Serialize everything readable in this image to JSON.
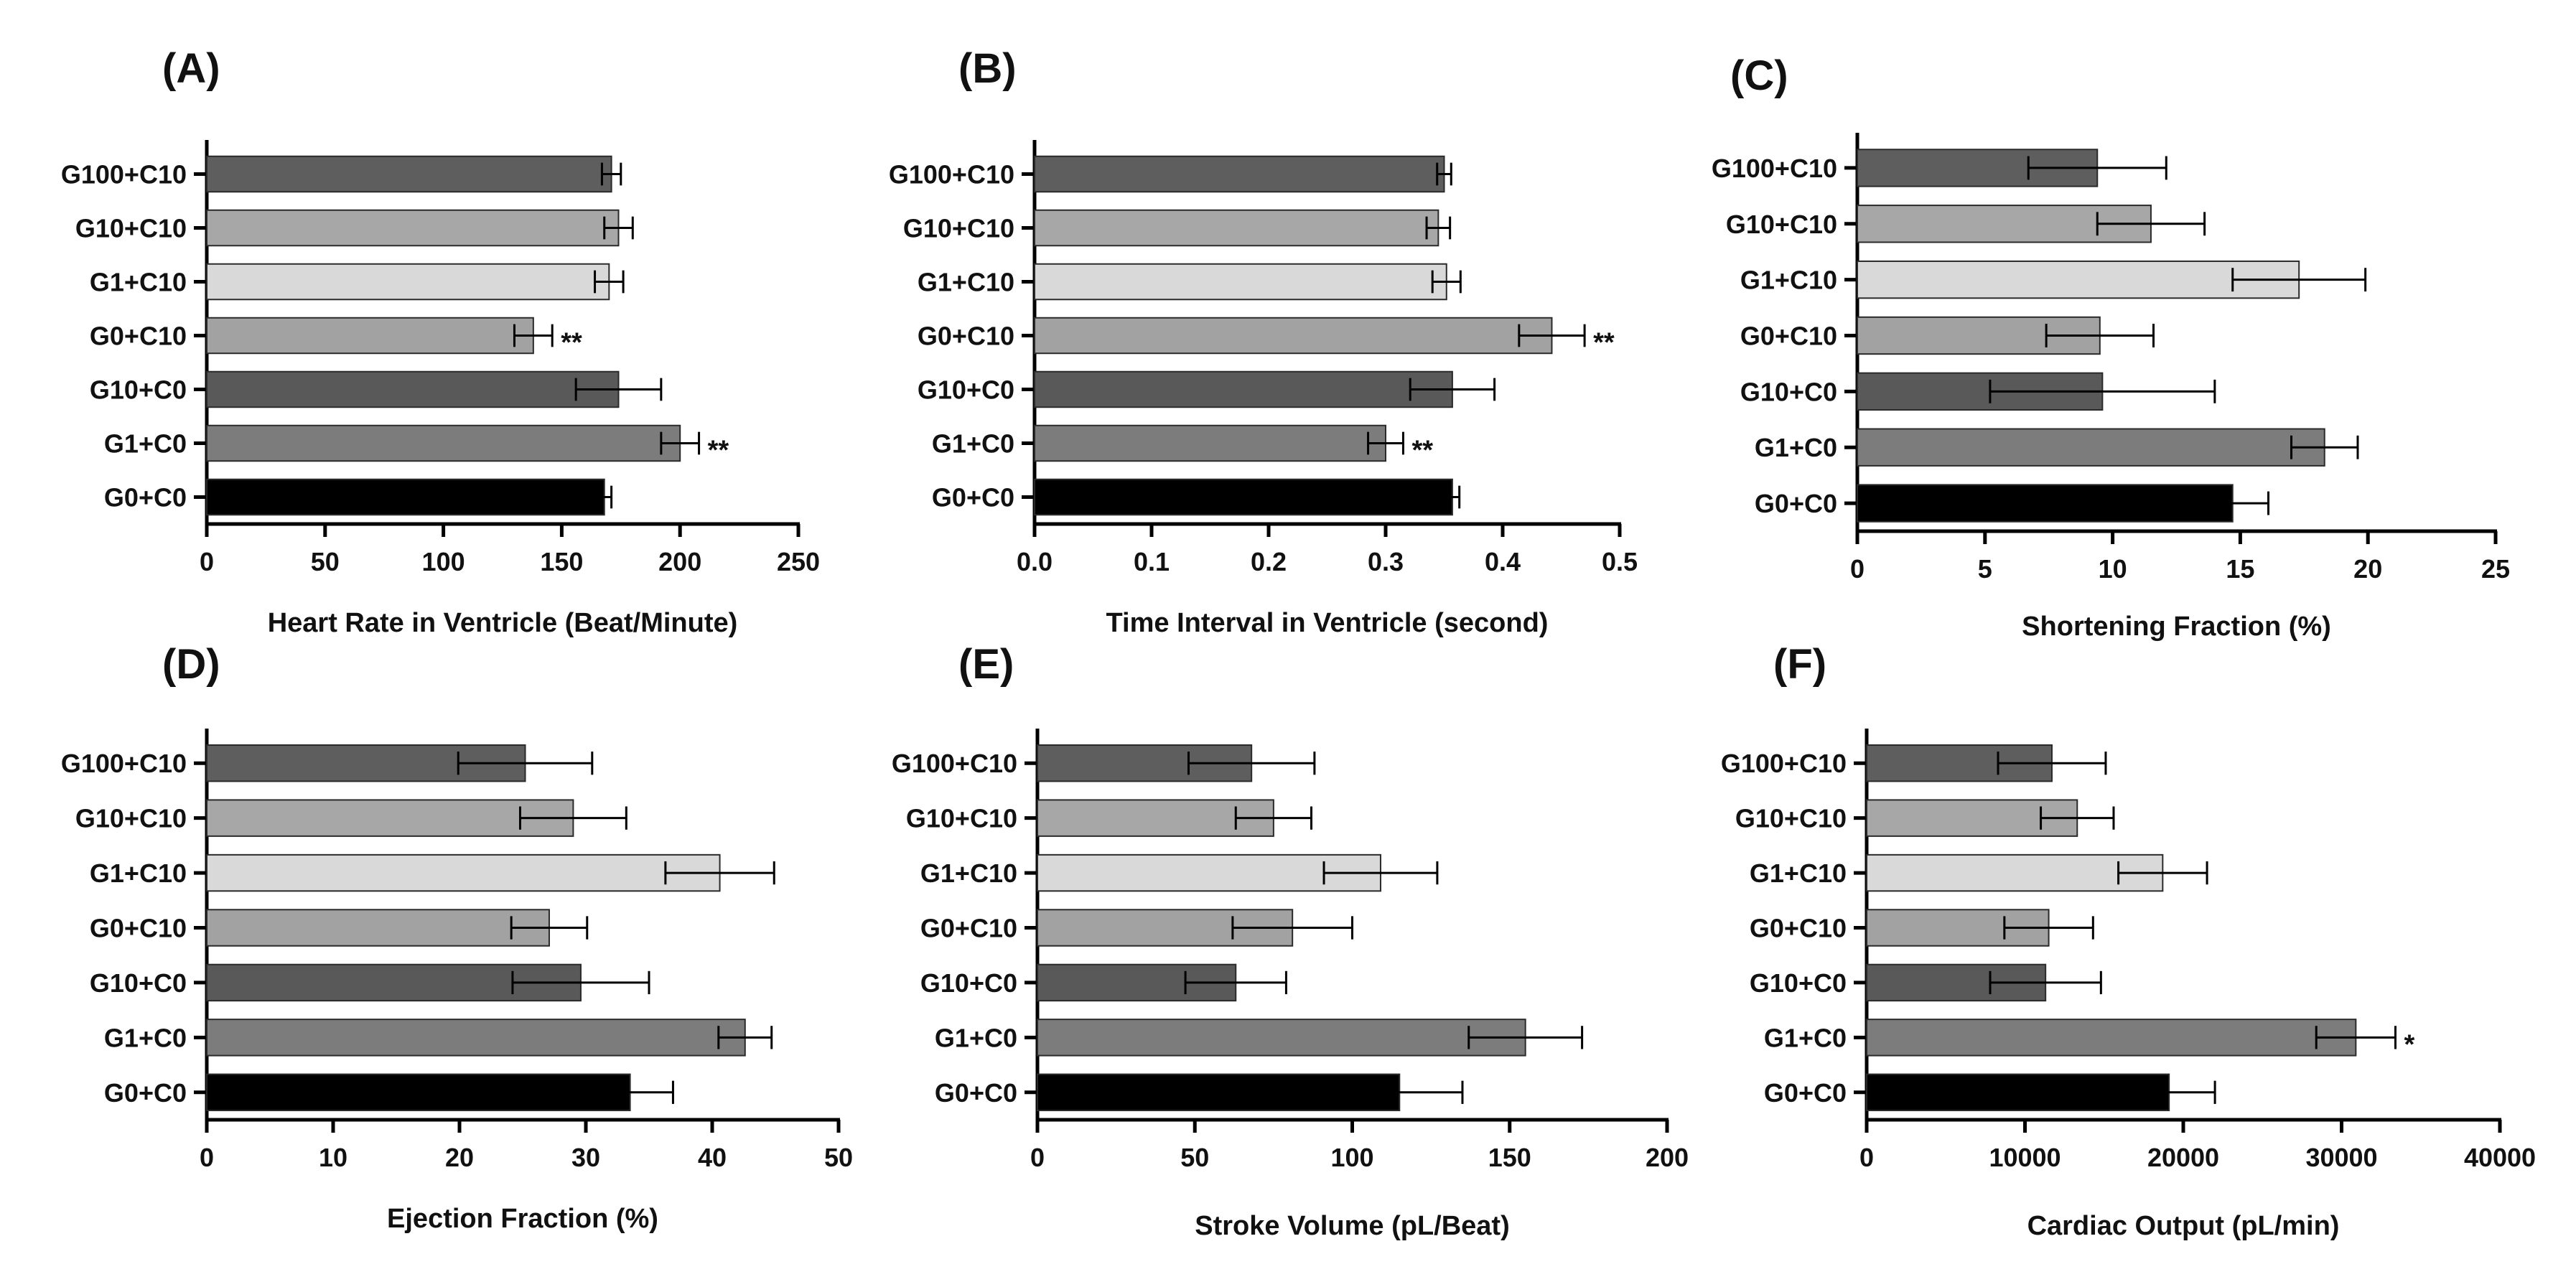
{
  "chart_data": [
    {
      "type": "bar",
      "orientation": "horizontal",
      "panel": "(A)",
      "xlabel": "Heart Rate in Ventricle (Beat/Minute)",
      "xlim": [
        0,
        250
      ],
      "xticks": [
        "0",
        "50",
        "100",
        "150",
        "200",
        "250"
      ],
      "categories": [
        "G100+C10",
        "G10+C10",
        "G1+C10",
        "G0+C10",
        "G10+C0",
        "G1+C0",
        "G0+C0"
      ],
      "values": [
        171,
        174,
        170,
        138,
        174,
        200,
        168
      ],
      "errors": [
        4,
        6,
        6,
        8,
        18,
        8,
        3
      ],
      "significance": [
        "",
        "",
        "",
        "**",
        "",
        "**",
        ""
      ],
      "colors": [
        "#5e5e5e",
        "#a7a7a7",
        "#d9d9d9",
        "#a2a2a2",
        "#595959",
        "#7c7c7c",
        "#000000"
      ]
    },
    {
      "type": "bar",
      "orientation": "horizontal",
      "panel": "(B)",
      "xlabel": "Time Interval in Ventricle (second)",
      "xlim": [
        0,
        0.5
      ],
      "xticks": [
        "0.0",
        "0.1",
        "0.2",
        "0.3",
        "0.4",
        "0.5"
      ],
      "categories": [
        "G100+C10",
        "G10+C10",
        "G1+C10",
        "G0+C10",
        "G10+C0",
        "G1+C0",
        "G0+C0"
      ],
      "values": [
        0.35,
        0.345,
        0.352,
        0.442,
        0.357,
        0.3,
        0.357
      ],
      "errors": [
        0.006,
        0.01,
        0.012,
        0.028,
        0.036,
        0.015,
        0.006
      ],
      "significance": [
        "",
        "",
        "",
        "**",
        "",
        "**",
        ""
      ],
      "colors": [
        "#5e5e5e",
        "#a7a7a7",
        "#d9d9d9",
        "#a2a2a2",
        "#595959",
        "#7c7c7c",
        "#000000"
      ]
    },
    {
      "type": "bar",
      "orientation": "horizontal",
      "panel": "(C)",
      "xlabel": "Shortening Fraction (%)",
      "xlim": [
        0,
        25
      ],
      "xticks": [
        "0",
        "5",
        "10",
        "15",
        "20",
        "25"
      ],
      "categories": [
        "G100+C10",
        "G10+C10",
        "G1+C10",
        "G0+C10",
        "G10+C0",
        "G1+C0",
        "G0+C0"
      ],
      "values": [
        9.4,
        11.5,
        17.3,
        9.5,
        9.6,
        18.3,
        14.7
      ],
      "errors": [
        2.7,
        2.1,
        2.6,
        2.1,
        4.4,
        1.3,
        1.4
      ],
      "significance": [
        "",
        "",
        "",
        "",
        "",
        "",
        ""
      ],
      "colors": [
        "#5e5e5e",
        "#a7a7a7",
        "#d9d9d9",
        "#a2a2a2",
        "#595959",
        "#7c7c7c",
        "#000000"
      ]
    },
    {
      "type": "bar",
      "orientation": "horizontal",
      "panel": "(D)",
      "xlabel": "Ejection Fraction (%)",
      "xlim": [
        0,
        50
      ],
      "xticks": [
        "0",
        "10",
        "20",
        "30",
        "40",
        "50"
      ],
      "categories": [
        "G100+C10",
        "G10+C10",
        "G1+C10",
        "G0+C10",
        "G10+C0",
        "G1+C0",
        "G0+C0"
      ],
      "values": [
        25.2,
        29,
        40.6,
        27.1,
        29.6,
        42.6,
        33.5
      ],
      "errors": [
        5.3,
        4.2,
        4.3,
        3,
        5.4,
        2.1,
        3.4
      ],
      "significance": [
        "",
        "",
        "",
        "",
        "",
        "",
        ""
      ],
      "colors": [
        "#5e5e5e",
        "#a7a7a7",
        "#d9d9d9",
        "#a2a2a2",
        "#595959",
        "#7c7c7c",
        "#000000"
      ]
    },
    {
      "type": "bar",
      "orientation": "horizontal",
      "panel": "(E)",
      "xlabel": "Stroke Volume (pL/Beat)",
      "xlim": [
        0,
        200
      ],
      "xticks": [
        "0",
        "50",
        "100",
        "150",
        "200"
      ],
      "categories": [
        "G100+C10",
        "G10+C10",
        "G1+C10",
        "G0+C10",
        "G10+C0",
        "G1+C0",
        "G0+C0"
      ],
      "values": [
        68,
        75,
        109,
        81,
        63,
        155,
        115
      ],
      "errors": [
        20,
        12,
        18,
        19,
        16,
        18,
        20
      ],
      "significance": [
        "",
        "",
        "",
        "",
        "",
        "",
        ""
      ],
      "colors": [
        "#5e5e5e",
        "#a7a7a7",
        "#d9d9d9",
        "#a2a2a2",
        "#595959",
        "#7c7c7c",
        "#000000"
      ]
    },
    {
      "type": "bar",
      "orientation": "horizontal",
      "panel": "(F)",
      "xlabel": "Cardiac Output (pL/min)",
      "xlim": [
        0,
        40000
      ],
      "xticks": [
        "0",
        "10000",
        "20000",
        "30000",
        "40000"
      ],
      "categories": [
        "G100+C10",
        "G10+C10",
        "G1+C10",
        "G0+C10",
        "G10+C0",
        "G1+C0",
        "G0+C0"
      ],
      "values": [
        11700,
        13300,
        18700,
        11500,
        11300,
        30900,
        19100
      ],
      "errors": [
        3400,
        2300,
        2800,
        2800,
        3500,
        2500,
        2900
      ],
      "significance": [
        "",
        "",
        "",
        "",
        "",
        "*",
        ""
      ],
      "colors": [
        "#5e5e5e",
        "#a7a7a7",
        "#d9d9d9",
        "#a2a2a2",
        "#595959",
        "#7c7c7c",
        "#000000"
      ]
    }
  ]
}
